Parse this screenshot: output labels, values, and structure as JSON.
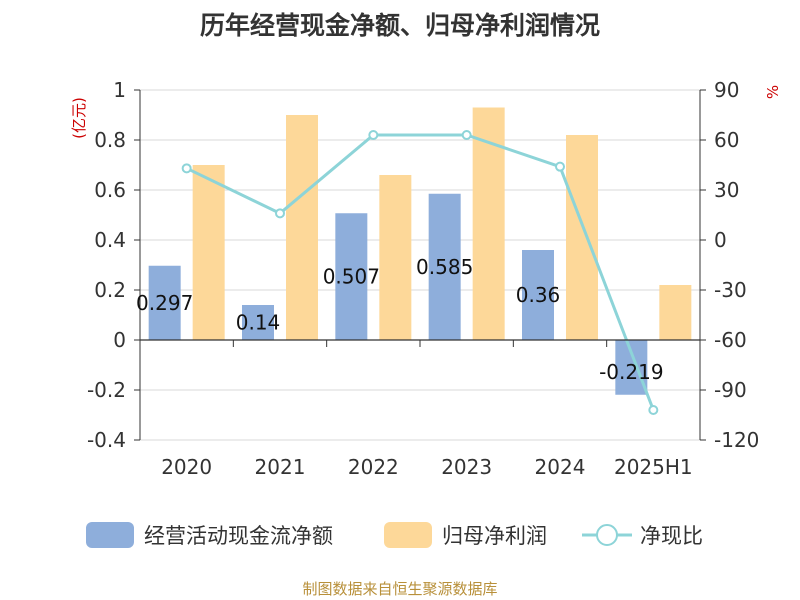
{
  "title": "历年经营现金净额、归母净利润情况",
  "source": "制图数据来自恒生聚源数据库",
  "chart_data": {
    "type": "bar+line",
    "categories": [
      "2020",
      "2021",
      "2022",
      "2023",
      "2024",
      "2025H1"
    ],
    "series": [
      {
        "name": "经营活动现金流净额",
        "type": "bar",
        "axis": "left",
        "color": "#8eaedb",
        "values": [
          0.297,
          0.14,
          0.507,
          0.585,
          0.36,
          -0.219
        ],
        "labels": [
          "0.297",
          "0.14",
          "0.507",
          "0.585",
          "0.36",
          "-0.219"
        ]
      },
      {
        "name": "归母净利润",
        "type": "bar",
        "axis": "left",
        "color": "#fdd899",
        "values": [
          0.7,
          0.9,
          0.66,
          0.93,
          0.82,
          0.22
        ]
      },
      {
        "name": "净现比",
        "type": "line",
        "axis": "right",
        "color": "#8dd4d8",
        "values": [
          43,
          16,
          63,
          63,
          44,
          -102
        ]
      }
    ],
    "y_left": {
      "unit": "亿元",
      "min": -0.4,
      "max": 1,
      "ticks": [
        "1",
        "0.8",
        "0.6",
        "0.4",
        "0.2",
        "0",
        "-0.2",
        "-0.4"
      ]
    },
    "y_right": {
      "unit": "%",
      "min": -120,
      "max": 90,
      "ticks": [
        "90",
        "60",
        "30",
        "0",
        "-30",
        "-60",
        "-90",
        "-120"
      ]
    },
    "grid": true,
    "legend_position": "bottom"
  }
}
